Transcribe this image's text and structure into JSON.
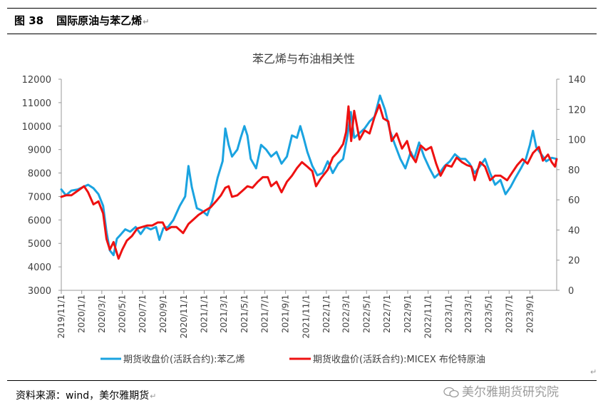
{
  "figure": {
    "number": "图 38",
    "title": "国际原油与苯乙烯",
    "source": "资料来源：wind，美尔雅期货",
    "watermark": "美尔雅期货研究院"
  },
  "chart_data": {
    "type": "line",
    "title": "苯乙烯与布油相关性",
    "legend_position": "bottom",
    "grid": false,
    "x_ticks": [
      "2019/11/1",
      "2020/1/1",
      "2020/3/1",
      "2020/5/1",
      "2020/7/1",
      "2020/9/1",
      "2020/11/1",
      "2021/1/1",
      "2021/3/1",
      "2021/5/1",
      "2021/7/1",
      "2021/9/1",
      "2021/11/1",
      "2022/1/1",
      "2022/3/1",
      "2022/5/1",
      "2022/7/1",
      "2022/9/1",
      "2022/11/1",
      "2023/1/1",
      "2023/3/1",
      "2023/5/1",
      "2023/7/1",
      "2023/9/1"
    ],
    "x_range": [
      "2019/11/1",
      "2023/11/20"
    ],
    "y_left": {
      "min": 3000,
      "max": 12000,
      "step": 1000,
      "ticks": [
        "3000",
        "4000",
        "5000",
        "6000",
        "7000",
        "8000",
        "9000",
        "10000",
        "11000",
        "12000"
      ]
    },
    "y_right": {
      "min": 0,
      "max": 140,
      "step": 20,
      "ticks": [
        "0",
        "20",
        "40",
        "60",
        "80",
        "100",
        "120",
        "140"
      ]
    },
    "series": [
      {
        "name": "期货收盘价(活跃合约):苯乙烯",
        "axis": "left",
        "color": "#1aa3e0",
        "points": [
          [
            "2019/11/1",
            7300
          ],
          [
            "2019/11/15",
            7050
          ],
          [
            "2019/12/1",
            7250
          ],
          [
            "2019/12/20",
            7300
          ],
          [
            "2020/1/5",
            7400
          ],
          [
            "2020/1/20",
            7500
          ],
          [
            "2020/2/5",
            7350
          ],
          [
            "2020/2/20",
            7100
          ],
          [
            "2020/3/5",
            6600
          ],
          [
            "2020/3/15",
            5500
          ],
          [
            "2020/3/25",
            4700
          ],
          [
            "2020/4/5",
            4500
          ],
          [
            "2020/4/15",
            5200
          ],
          [
            "2020/4/25",
            5350
          ],
          [
            "2020/5/10",
            5600
          ],
          [
            "2020/5/25",
            5500
          ],
          [
            "2020/6/10",
            5700
          ],
          [
            "2020/6/25",
            5400
          ],
          [
            "2020/7/10",
            5700
          ],
          [
            "2020/7/25",
            5600
          ],
          [
            "2020/8/10",
            5700
          ],
          [
            "2020/8/20",
            5150
          ],
          [
            "2020/9/1",
            5650
          ],
          [
            "2020/9/15",
            5700
          ],
          [
            "2020/10/1",
            6000
          ],
          [
            "2020/10/20",
            6600
          ],
          [
            "2020/11/5",
            7000
          ],
          [
            "2020/11/15",
            8300
          ],
          [
            "2020/11/25",
            7400
          ],
          [
            "2020/12/10",
            6500
          ],
          [
            "2020/12/25",
            6400
          ],
          [
            "2021/1/10",
            6200
          ],
          [
            "2021/1/25",
            6800
          ],
          [
            "2021/2/10",
            7800
          ],
          [
            "2021/2/25",
            8500
          ],
          [
            "2021/3/5",
            9900
          ],
          [
            "2021/3/15",
            9200
          ],
          [
            "2021/3/25",
            8700
          ],
          [
            "2021/4/10",
            9000
          ],
          [
            "2021/4/20",
            9500
          ],
          [
            "2021/5/1",
            10000
          ],
          [
            "2021/5/10",
            9600
          ],
          [
            "2021/5/20",
            8600
          ],
          [
            "2021/6/5",
            8200
          ],
          [
            "2021/6/20",
            9200
          ],
          [
            "2021/7/5",
            9000
          ],
          [
            "2021/7/20",
            8700
          ],
          [
            "2021/8/5",
            8900
          ],
          [
            "2021/8/20",
            8400
          ],
          [
            "2021/9/5",
            8700
          ],
          [
            "2021/9/20",
            9600
          ],
          [
            "2021/10/5",
            9500
          ],
          [
            "2021/10/15",
            10000
          ],
          [
            "2021/10/25",
            9500
          ],
          [
            "2021/11/5",
            8900
          ],
          [
            "2021/11/20",
            8300
          ],
          [
            "2021/12/5",
            7900
          ],
          [
            "2021/12/20",
            8000
          ],
          [
            "2022/1/5",
            8500
          ],
          [
            "2022/1/20",
            8000
          ],
          [
            "2022/2/5",
            8400
          ],
          [
            "2022/2/20",
            8600
          ],
          [
            "2022/3/5",
            9600
          ],
          [
            "2022/3/15",
            10600
          ],
          [
            "2022/3/25",
            9500
          ],
          [
            "2022/4/10",
            9700
          ],
          [
            "2022/4/25",
            9900
          ],
          [
            "2022/5/10",
            10200
          ],
          [
            "2022/5/25",
            10400
          ],
          [
            "2022/6/10",
            11300
          ],
          [
            "2022/6/25",
            10700
          ],
          [
            "2022/7/10",
            9800
          ],
          [
            "2022/7/25",
            9200
          ],
          [
            "2022/8/10",
            8600
          ],
          [
            "2022/8/25",
            8200
          ],
          [
            "2022/9/10",
            8900
          ],
          [
            "2022/9/20",
            8600
          ],
          [
            "2022/10/5",
            9300
          ],
          [
            "2022/10/20",
            8700
          ],
          [
            "2022/11/5",
            8200
          ],
          [
            "2022/11/20",
            7800
          ],
          [
            "2022/12/5",
            8000
          ],
          [
            "2022/12/20",
            8300
          ],
          [
            "2023/1/5",
            8500
          ],
          [
            "2023/1/20",
            8800
          ],
          [
            "2023/2/5",
            8600
          ],
          [
            "2023/2/20",
            8600
          ],
          [
            "2023/3/5",
            8400
          ],
          [
            "2023/3/20",
            8000
          ],
          [
            "2023/4/5",
            8300
          ],
          [
            "2023/4/20",
            8600
          ],
          [
            "2023/5/5",
            8000
          ],
          [
            "2023/5/20",
            7500
          ],
          [
            "2023/6/5",
            7700
          ],
          [
            "2023/6/20",
            7100
          ],
          [
            "2023/7/5",
            7400
          ],
          [
            "2023/7/20",
            7800
          ],
          [
            "2023/8/5",
            8200
          ],
          [
            "2023/8/20",
            8600
          ],
          [
            "2023/9/1",
            9200
          ],
          [
            "2023/9/10",
            9800
          ],
          [
            "2023/9/20",
            9100
          ],
          [
            "2023/10/5",
            8800
          ],
          [
            "2023/10/20",
            8500
          ],
          [
            "2023/11/5",
            8650
          ],
          [
            "2023/11/20",
            8600
          ]
        ]
      },
      {
        "name": "期货收盘价(活跃合约):MICEX 布伦特原油",
        "axis": "right",
        "color": "#ee1111",
        "points": [
          [
            "2019/11/1",
            62
          ],
          [
            "2019/11/15",
            63
          ],
          [
            "2019/12/1",
            63
          ],
          [
            "2019/12/20",
            66
          ],
          [
            "2020/1/8",
            69
          ],
          [
            "2020/1/20",
            65
          ],
          [
            "2020/2/5",
            57
          ],
          [
            "2020/2/20",
            59
          ],
          [
            "2020/3/5",
            51
          ],
          [
            "2020/3/15",
            34
          ],
          [
            "2020/3/25",
            27
          ],
          [
            "2020/4/5",
            32
          ],
          [
            "2020/4/20",
            21
          ],
          [
            "2020/5/1",
            27
          ],
          [
            "2020/5/15",
            33
          ],
          [
            "2020/5/30",
            36
          ],
          [
            "2020/6/15",
            41
          ],
          [
            "2020/6/30",
            42
          ],
          [
            "2020/7/15",
            43
          ],
          [
            "2020/7/30",
            43
          ],
          [
            "2020/8/15",
            45
          ],
          [
            "2020/8/30",
            45
          ],
          [
            "2020/9/10",
            40
          ],
          [
            "2020/9/25",
            42
          ],
          [
            "2020/10/10",
            42
          ],
          [
            "2020/10/30",
            38
          ],
          [
            "2020/11/15",
            44
          ],
          [
            "2020/11/30",
            47
          ],
          [
            "2020/12/15",
            50
          ],
          [
            "2021/1/5",
            53
          ],
          [
            "2021/1/20",
            55
          ],
          [
            "2021/2/5",
            59
          ],
          [
            "2021/2/20",
            63
          ],
          [
            "2021/3/5",
            68
          ],
          [
            "2021/3/15",
            69
          ],
          [
            "2021/3/25",
            62
          ],
          [
            "2021/4/10",
            63
          ],
          [
            "2021/4/25",
            66
          ],
          [
            "2021/5/10",
            69
          ],
          [
            "2021/5/25",
            68
          ],
          [
            "2021/6/10",
            72
          ],
          [
            "2021/6/25",
            75
          ],
          [
            "2021/7/10",
            75
          ],
          [
            "2021/7/20",
            69
          ],
          [
            "2021/8/5",
            72
          ],
          [
            "2021/8/20",
            65
          ],
          [
            "2021/9/5",
            72
          ],
          [
            "2021/9/20",
            76
          ],
          [
            "2021/10/5",
            81
          ],
          [
            "2021/10/20",
            85
          ],
          [
            "2021/11/5",
            82
          ],
          [
            "2021/11/20",
            79
          ],
          [
            "2021/12/1",
            69
          ],
          [
            "2021/12/15",
            74
          ],
          [
            "2022/1/5",
            80
          ],
          [
            "2022/1/20",
            88
          ],
          [
            "2022/2/5",
            92
          ],
          [
            "2022/2/20",
            97
          ],
          [
            "2022/3/1",
            105
          ],
          [
            "2022/3/8",
            122
          ],
          [
            "2022/3/16",
            99
          ],
          [
            "2022/3/25",
            119
          ],
          [
            "2022/4/10",
            100
          ],
          [
            "2022/4/25",
            106
          ],
          [
            "2022/5/10",
            104
          ],
          [
            "2022/5/25",
            115
          ],
          [
            "2022/6/8",
            123
          ],
          [
            "2022/6/20",
            114
          ],
          [
            "2022/7/5",
            112
          ],
          [
            "2022/7/15",
            99
          ],
          [
            "2022/7/30",
            104
          ],
          [
            "2022/8/15",
            94
          ],
          [
            "2022/8/30",
            99
          ],
          [
            "2022/9/10",
            90
          ],
          [
            "2022/9/25",
            85
          ],
          [
            "2022/10/10",
            96
          ],
          [
            "2022/10/25",
            93
          ],
          [
            "2022/11/10",
            95
          ],
          [
            "2022/11/25",
            84
          ],
          [
            "2022/12/8",
            76
          ],
          [
            "2022/12/25",
            83
          ],
          [
            "2023/1/10",
            82
          ],
          [
            "2023/1/25",
            88
          ],
          [
            "2023/2/10",
            85
          ],
          [
            "2023/2/25",
            83
          ],
          [
            "2023/3/10",
            82
          ],
          [
            "2023/3/20",
            73
          ],
          [
            "2023/4/5",
            85
          ],
          [
            "2023/4/20",
            82
          ],
          [
            "2023/5/5",
            73
          ],
          [
            "2023/5/20",
            76
          ],
          [
            "2023/6/5",
            76
          ],
          [
            "2023/6/25",
            73
          ],
          [
            "2023/7/10",
            78
          ],
          [
            "2023/7/25",
            83
          ],
          [
            "2023/8/10",
            87
          ],
          [
            "2023/8/25",
            84
          ],
          [
            "2023/9/10",
            91
          ],
          [
            "2023/9/28",
            95
          ],
          [
            "2023/10/10",
            86
          ],
          [
            "2023/10/25",
            90
          ],
          [
            "2023/11/5",
            85
          ],
          [
            "2023/11/15",
            82
          ],
          [
            "2023/11/20",
            87
          ]
        ]
      }
    ]
  }
}
